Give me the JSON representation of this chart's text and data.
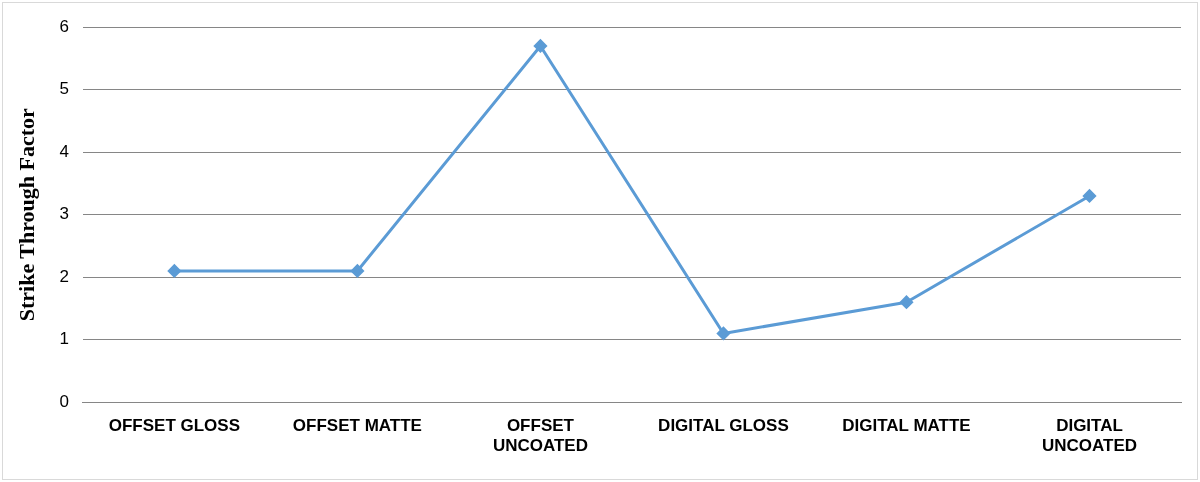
{
  "chart_data": {
    "type": "line",
    "ylabel": "Strike Through Factor",
    "categories": [
      "OFFSET GLOSS",
      "OFFSET MATTE",
      "OFFSET UNCOATED",
      "DIGITAL GLOSS",
      "DIGITAL MATTE",
      "DIGITAL UNCOATED"
    ],
    "series": [
      {
        "color": "#5b9bd5",
        "values": [
          2.1,
          2.1,
          5.7,
          1.1,
          1.6,
          3.3
        ]
      }
    ],
    "ylim": [
      0,
      6
    ],
    "yticks": [
      0,
      1,
      2,
      3,
      4,
      5,
      6
    ],
    "grid": "y",
    "legend": false,
    "marker": "diamond",
    "line_style": "solid"
  }
}
